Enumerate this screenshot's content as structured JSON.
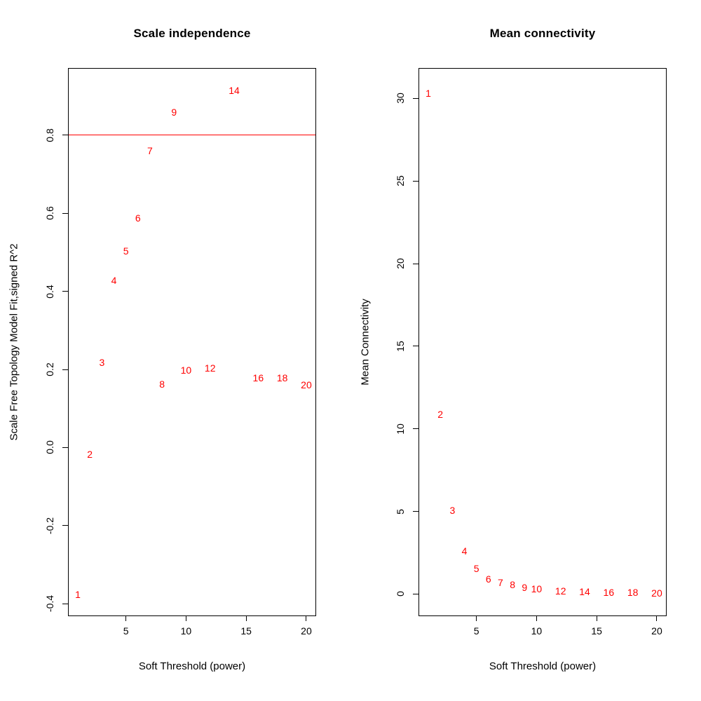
{
  "colors": {
    "points": "#FF0000",
    "threshold_line": "#FF0000",
    "axis": "#000000"
  },
  "chart_data": [
    {
      "type": "scatter",
      "title": "Scale independence",
      "xlabel": "Soft Threshold (power)",
      "ylabel": "Scale Free Topology Model Fit,signed R^2",
      "xlim": [
        0.24,
        20.76
      ],
      "ylim": [
        -0.43,
        0.97
      ],
      "grid": false,
      "legend": null,
      "hline": 0.8,
      "point_style": "text-labels",
      "xticks": [
        {
          "v": 5,
          "label": "5"
        },
        {
          "v": 10,
          "label": "10"
        },
        {
          "v": 15,
          "label": "15"
        },
        {
          "v": 20,
          "label": "20"
        }
      ],
      "yticks": [
        {
          "v": -0.4,
          "label": "-0.4"
        },
        {
          "v": -0.2,
          "label": "-0.2"
        },
        {
          "v": 0.0,
          "label": "0.0"
        },
        {
          "v": 0.2,
          "label": "0.2"
        },
        {
          "v": 0.4,
          "label": "0.4"
        },
        {
          "v": 0.6,
          "label": "0.6"
        },
        {
          "v": 0.8,
          "label": "0.8"
        }
      ],
      "points": [
        {
          "x": 1,
          "y": -0.377,
          "label": "1"
        },
        {
          "x": 2,
          "y": -0.018,
          "label": "2"
        },
        {
          "x": 3,
          "y": 0.218,
          "label": "3"
        },
        {
          "x": 4,
          "y": 0.428,
          "label": "4"
        },
        {
          "x": 5,
          "y": 0.503,
          "label": "5"
        },
        {
          "x": 6,
          "y": 0.588,
          "label": "6"
        },
        {
          "x": 7,
          "y": 0.76,
          "label": "7"
        },
        {
          "x": 8,
          "y": 0.163,
          "label": "8"
        },
        {
          "x": 9,
          "y": 0.858,
          "label": "9"
        },
        {
          "x": 10,
          "y": 0.198,
          "label": "10"
        },
        {
          "x": 12,
          "y": 0.203,
          "label": "12"
        },
        {
          "x": 14,
          "y": 0.915,
          "label": "14"
        },
        {
          "x": 16,
          "y": 0.178,
          "label": "16"
        },
        {
          "x": 18,
          "y": 0.178,
          "label": "18"
        },
        {
          "x": 20,
          "y": 0.16,
          "label": "20"
        }
      ]
    },
    {
      "type": "scatter",
      "title": "Mean connectivity",
      "xlabel": "Soft Threshold (power)",
      "ylabel": "Mean Connectivity",
      "xlim": [
        0.24,
        20.76
      ],
      "ylim": [
        -1.3,
        31.8
      ],
      "grid": false,
      "legend": null,
      "hline": null,
      "point_style": "text-labels",
      "xticks": [
        {
          "v": 5,
          "label": "5"
        },
        {
          "v": 10,
          "label": "10"
        },
        {
          "v": 15,
          "label": "15"
        },
        {
          "v": 20,
          "label": "20"
        }
      ],
      "yticks": [
        {
          "v": 0,
          "label": "0"
        },
        {
          "v": 5,
          "label": "5"
        },
        {
          "v": 10,
          "label": "10"
        },
        {
          "v": 15,
          "label": "15"
        },
        {
          "v": 20,
          "label": "20"
        },
        {
          "v": 25,
          "label": "25"
        },
        {
          "v": 30,
          "label": "30"
        }
      ],
      "points": [
        {
          "x": 1,
          "y": 30.3,
          "label": "1"
        },
        {
          "x": 2,
          "y": 10.9,
          "label": "2"
        },
        {
          "x": 3,
          "y": 5.05,
          "label": "3"
        },
        {
          "x": 4,
          "y": 2.6,
          "label": "4"
        },
        {
          "x": 5,
          "y": 1.55,
          "label": "5"
        },
        {
          "x": 6,
          "y": 0.9,
          "label": "6"
        },
        {
          "x": 7,
          "y": 0.7,
          "label": "7"
        },
        {
          "x": 8,
          "y": 0.55,
          "label": "8"
        },
        {
          "x": 9,
          "y": 0.38,
          "label": "9"
        },
        {
          "x": 10,
          "y": 0.33,
          "label": "10"
        },
        {
          "x": 12,
          "y": 0.18,
          "label": "12"
        },
        {
          "x": 14,
          "y": 0.14,
          "label": "14"
        },
        {
          "x": 16,
          "y": 0.1,
          "label": "16"
        },
        {
          "x": 18,
          "y": 0.08,
          "label": "18"
        },
        {
          "x": 20,
          "y": 0.06,
          "label": "20"
        }
      ]
    }
  ]
}
